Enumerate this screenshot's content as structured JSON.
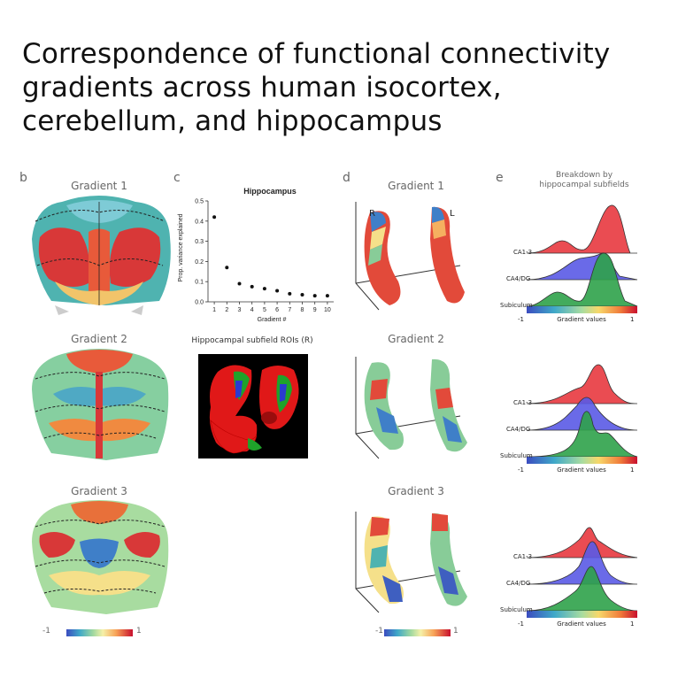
{
  "title": "Correspondence of functional connectivity gradients across human isocortex, cerebellum, and hippocampus",
  "panels": {
    "b": {
      "letter": "b",
      "titles": [
        "Gradient 1",
        "Gradient 2",
        "Gradient 3"
      ],
      "colorbar_min": "-1",
      "colorbar_max": "1"
    },
    "c": {
      "letter": "c",
      "roi_title": "Hippocampal subfield ROIs (R)"
    },
    "d": {
      "letter": "d",
      "titles": [
        "Gradient 1",
        "Gradient 2",
        "Gradient 3"
      ],
      "right_label": "R",
      "left_label": "L",
      "colorbar_min": "-1",
      "colorbar_max": "1"
    },
    "e": {
      "letter": "e",
      "heading_line1": "Breakdown by",
      "heading_line2": "hippocampal subfields",
      "rows": [
        "CA1-3",
        "CA4/DG",
        "Subiculum"
      ],
      "axis_min": "-1",
      "axis_label": "Gradient values",
      "axis_max": "1",
      "colors": {
        "CA1-3": "#e8393f",
        "CA4/DG": "#5a5ae6",
        "Subiculum": "#2fa24a"
      }
    }
  },
  "chart_data": {
    "type": "scatter",
    "title": "Hippocampus",
    "xlabel": "Gradient #",
    "ylabel": "Prop. variance explained",
    "x": [
      1,
      2,
      3,
      4,
      5,
      6,
      7,
      8,
      9,
      10
    ],
    "y": [
      0.42,
      0.17,
      0.09,
      0.075,
      0.065,
      0.055,
      0.04,
      0.035,
      0.03,
      0.03
    ],
    "xticks": [
      "1",
      "2",
      "3",
      "4",
      "5",
      "6",
      "7",
      "8",
      "9",
      "10"
    ],
    "yticks": [
      "0.0",
      "0.1",
      "0.2",
      "0.3",
      "0.4",
      "0.5"
    ],
    "ylim": [
      0,
      0.5
    ],
    "xlim": [
      0.5,
      10.5
    ],
    "grid": false,
    "marker_color": "#111111"
  }
}
